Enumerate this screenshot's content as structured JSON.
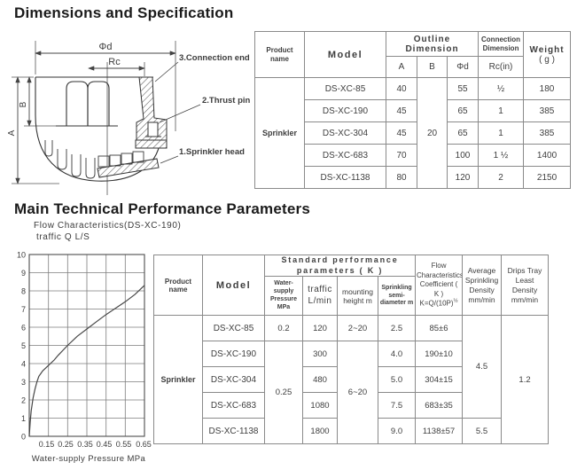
{
  "page": {
    "section1_title": "Dimensions and Specification",
    "section2_title": "Main Technical Performance Parameters"
  },
  "diagram": {
    "dim_phid": "Φd",
    "dim_rc": "Rc",
    "dim_a": "A",
    "dim_b": "B",
    "label_connection_end": "3.Connection end",
    "label_thrust_pin": "2.Thrust pin",
    "label_sprinkler_head": "1.Sprinkler head"
  },
  "spec_table": {
    "headers": {
      "product_name": "Product name",
      "model": "Model",
      "outline_dimension": "Outline Dimension",
      "connection_dimension": "Connection Dimension",
      "weight": "Weight",
      "weight_unit": "( g )",
      "col_a": "A",
      "col_b": "B",
      "col_phid": "Φd",
      "col_rc": "Rc(in)"
    },
    "product_name": "Sprinkler",
    "shared_b": "20",
    "rows": [
      {
        "model": "DS-XC-85",
        "a": "40",
        "phid": "55",
        "rc": "½",
        "weight": "180"
      },
      {
        "model": "DS-XC-190",
        "a": "45",
        "phid": "65",
        "rc": "1",
        "weight": "385"
      },
      {
        "model": "DS-XC-304",
        "a": "45",
        "phid": "65",
        "rc": "1",
        "weight": "385"
      },
      {
        "model": "DS-XC-683",
        "a": "70",
        "phid": "100",
        "rc": "1 ½",
        "weight": "1400"
      },
      {
        "model": "DS-XC-1138",
        "a": "80",
        "phid": "120",
        "rc": "2",
        "weight": "2150"
      }
    ]
  },
  "chart": {
    "title": "Flow Characteristics(DS-XC-190)",
    "y_axis_label": "traffic Q L/S",
    "x_axis_label": "Water-supply Pressure MPa"
  },
  "chart_data": {
    "type": "line",
    "title": "Flow Characteristics(DS-XC-190)",
    "xlabel": "Water-supply Pressure MPa",
    "ylabel": "traffic Q L/S",
    "xlim": [
      0.05,
      0.65
    ],
    "ylim": [
      0,
      10
    ],
    "grid": true,
    "y_ticks": [
      0,
      1,
      2,
      3,
      4,
      5,
      6,
      7,
      8,
      9,
      10
    ],
    "x_tick_labels": [
      "0.15",
      "0.25",
      "0.35",
      "0.45",
      "0.55",
      "0.65"
    ],
    "series": [
      {
        "name": "DS-XC-190",
        "x": [
          0.05,
          0.055,
          0.06,
          0.07,
          0.08,
          0.09,
          0.1,
          0.12,
          0.15,
          0.18,
          0.2,
          0.25,
          0.3,
          0.35,
          0.4,
          0.45,
          0.5,
          0.55,
          0.6,
          0.65
        ],
        "y": [
          0,
          0.8,
          1.4,
          2.1,
          2.6,
          3.0,
          3.3,
          3.6,
          3.9,
          4.2,
          4.45,
          5.0,
          5.5,
          5.9,
          6.3,
          6.7,
          7.05,
          7.4,
          7.8,
          8.3
        ]
      }
    ]
  },
  "perf_table": {
    "headers": {
      "product_name": "Product name",
      "model": "Model",
      "group": "Standard performance parameters ( K )",
      "pressure": "Water-supply Pressure MPa",
      "traffic": "traffic L/min",
      "mounting": "mounting height m",
      "semi_diameter": "Sprinkling semi-diameter m",
      "flow": [
        "Flow",
        "Characteristics",
        "Coefficient ( K )"
      ],
      "flow_formula": "K=Q/(10P)",
      "flow_formula_sup": "½",
      "avg_density": "Average Sprinkling Density mm/min",
      "drips_density": "Drips Tray Least Density mm/min"
    },
    "product_name": "Sprinkler",
    "shared_pressure": "0.25",
    "shared_mounting": "6~20",
    "avg_density_top": "4.5",
    "avg_density_last": "5.5",
    "drips_value": "1.2",
    "rows": [
      {
        "model": "DS-XC-85",
        "pressure": "0.2",
        "traffic": "120",
        "mounting": "2~20",
        "semi": "2.5",
        "coeff": "85±6"
      },
      {
        "model": "DS-XC-190",
        "traffic": "300",
        "semi": "4.0",
        "coeff": "190±10"
      },
      {
        "model": "DS-XC-304",
        "traffic": "480",
        "semi": "5.0",
        "coeff": "304±15"
      },
      {
        "model": "DS-XC-683",
        "traffic": "1080",
        "semi": "7.5",
        "coeff": "683±35"
      },
      {
        "model": "DS-XC-1138",
        "traffic": "1800",
        "semi": "9.0",
        "coeff": "1138±57"
      }
    ]
  }
}
